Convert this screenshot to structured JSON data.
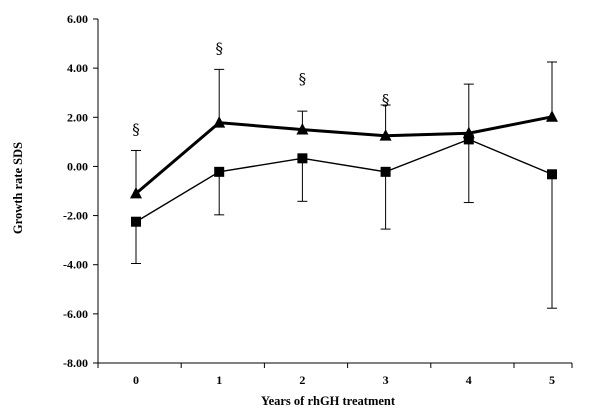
{
  "chart_data": {
    "type": "line",
    "title": "",
    "xlabel": "Years of rhGH treatment",
    "ylabel": "Growth rate SDS",
    "x": [
      0,
      1,
      2,
      3,
      4,
      5
    ],
    "ylim": [
      -8.0,
      6.0
    ],
    "yticks": [
      -8.0,
      -6.0,
      -4.0,
      -2.0,
      0.0,
      2.0,
      4.0,
      6.0
    ],
    "ytick_labels": [
      "-8.00",
      "-6.00",
      "-4.00",
      "-2.00",
      "0.00",
      "2.00",
      "4.00",
      "6.00"
    ],
    "xtick_labels": [
      "0",
      "1",
      "2",
      "3",
      "4",
      "5"
    ],
    "grid": false,
    "legend": "none",
    "series": [
      {
        "marker": "triangle",
        "values": [
          -1.1,
          1.78,
          1.5,
          1.25,
          1.35,
          2.02
        ],
        "error_upper": [
          0.65,
          3.95,
          2.25,
          2.5,
          3.35,
          4.25
        ],
        "color": "#000000",
        "line_style": "thick"
      },
      {
        "marker": "square",
        "values": [
          -2.25,
          -0.22,
          0.33,
          -0.22,
          1.1,
          -0.32
        ],
        "error_lower": [
          -3.95,
          -1.97,
          -1.42,
          -2.55,
          -1.47,
          -5.77
        ],
        "color": "#000000",
        "line_style": "thin"
      }
    ],
    "annotations": [
      {
        "text": "§",
        "x": 0,
        "y": 1.5
      },
      {
        "text": "§",
        "x": 1,
        "y": 4.8
      },
      {
        "text": "§",
        "x": 2,
        "y": 3.55
      },
      {
        "text": "§",
        "x": 3,
        "y": 2.7
      }
    ]
  }
}
